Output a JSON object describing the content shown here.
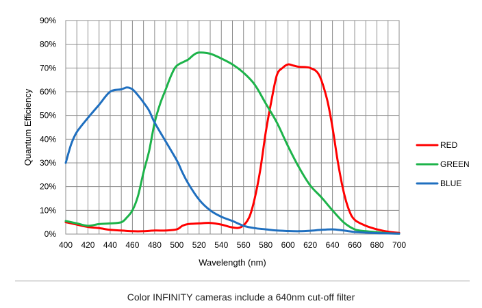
{
  "chart_data": {
    "type": "line",
    "title": "",
    "xlabel": "Wavelength (nm)",
    "ylabel": "Quantum Efficiency",
    "xlim": [
      400,
      700
    ],
    "ylim": [
      0,
      90
    ],
    "x_ticks": [
      "400",
      "420",
      "440",
      "460",
      "480",
      "500",
      "520",
      "540",
      "560",
      "580",
      "600",
      "620",
      "640",
      "660",
      "680",
      "700"
    ],
    "y_ticks": [
      "0%",
      "10%",
      "20%",
      "30%",
      "40%",
      "50%",
      "60%",
      "70%",
      "80%",
      "90%"
    ],
    "grid": true,
    "legend_position": "right",
    "series": [
      {
        "name": "RED",
        "color": "#ff0000",
        "points": [
          [
            400,
            5
          ],
          [
            410,
            4
          ],
          [
            420,
            3
          ],
          [
            430,
            2.5
          ],
          [
            440,
            1.8
          ],
          [
            450,
            1.5
          ],
          [
            460,
            1.2
          ],
          [
            470,
            1.2
          ],
          [
            480,
            1.5
          ],
          [
            490,
            1.5
          ],
          [
            500,
            2
          ],
          [
            505,
            3.5
          ],
          [
            510,
            4.2
          ],
          [
            520,
            4.5
          ],
          [
            530,
            4.7
          ],
          [
            540,
            4
          ],
          [
            550,
            2.8
          ],
          [
            558,
            3
          ],
          [
            565,
            7
          ],
          [
            570,
            15
          ],
          [
            575,
            27
          ],
          [
            580,
            43
          ],
          [
            585,
            56
          ],
          [
            590,
            67
          ],
          [
            595,
            70
          ],
          [
            600,
            71.5
          ],
          [
            605,
            71
          ],
          [
            610,
            70.5
          ],
          [
            620,
            70
          ],
          [
            628,
            67
          ],
          [
            635,
            57
          ],
          [
            640,
            45
          ],
          [
            645,
            30
          ],
          [
            650,
            18
          ],
          [
            655,
            10
          ],
          [
            660,
            6
          ],
          [
            670,
            3.5
          ],
          [
            680,
            2
          ],
          [
            690,
            1
          ],
          [
            700,
            0.5
          ]
        ]
      },
      {
        "name": "GREEN",
        "color": "#1db34a",
        "points": [
          [
            400,
            5.5
          ],
          [
            410,
            4.5
          ],
          [
            420,
            3.5
          ],
          [
            430,
            4.2
          ],
          [
            440,
            4.5
          ],
          [
            450,
            5
          ],
          [
            455,
            7
          ],
          [
            460,
            10
          ],
          [
            465,
            16
          ],
          [
            470,
            26
          ],
          [
            475,
            35
          ],
          [
            480,
            47
          ],
          [
            485,
            55
          ],
          [
            490,
            61
          ],
          [
            495,
            67
          ],
          [
            500,
            71
          ],
          [
            510,
            73.5
          ],
          [
            515,
            75.5
          ],
          [
            520,
            76.5
          ],
          [
            530,
            76
          ],
          [
            540,
            74
          ],
          [
            550,
            71.5
          ],
          [
            560,
            68
          ],
          [
            570,
            63
          ],
          [
            580,
            55
          ],
          [
            590,
            47
          ],
          [
            600,
            37
          ],
          [
            610,
            28
          ],
          [
            620,
            20.5
          ],
          [
            630,
            15.5
          ],
          [
            640,
            10
          ],
          [
            650,
            5
          ],
          [
            660,
            2
          ],
          [
            670,
            1.2
          ],
          [
            680,
            0.8
          ],
          [
            690,
            0.4
          ],
          [
            700,
            0.2
          ]
        ]
      },
      {
        "name": "BLUE",
        "color": "#1f6fbf",
        "points": [
          [
            400,
            30
          ],
          [
            405,
            38
          ],
          [
            410,
            43
          ],
          [
            420,
            49
          ],
          [
            430,
            54.5
          ],
          [
            440,
            60
          ],
          [
            450,
            61
          ],
          [
            455,
            61.8
          ],
          [
            460,
            61
          ],
          [
            465,
            58.5
          ],
          [
            470,
            55.5
          ],
          [
            475,
            52
          ],
          [
            480,
            47
          ],
          [
            490,
            39
          ],
          [
            500,
            31
          ],
          [
            505,
            26
          ],
          [
            510,
            21.5
          ],
          [
            520,
            14.5
          ],
          [
            530,
            10
          ],
          [
            540,
            7.3
          ],
          [
            550,
            5.5
          ],
          [
            560,
            3.5
          ],
          [
            570,
            2.5
          ],
          [
            580,
            2
          ],
          [
            590,
            1.5
          ],
          [
            600,
            1.3
          ],
          [
            610,
            1.2
          ],
          [
            620,
            1.4
          ],
          [
            630,
            1.8
          ],
          [
            640,
            2
          ],
          [
            650,
            1.5
          ],
          [
            660,
            0.9
          ],
          [
            670,
            0.6
          ],
          [
            680,
            0.4
          ],
          [
            690,
            0.3
          ],
          [
            700,
            0.2
          ]
        ]
      }
    ]
  },
  "caption": "Color INFINITY cameras include a 640nm cut-off filter"
}
